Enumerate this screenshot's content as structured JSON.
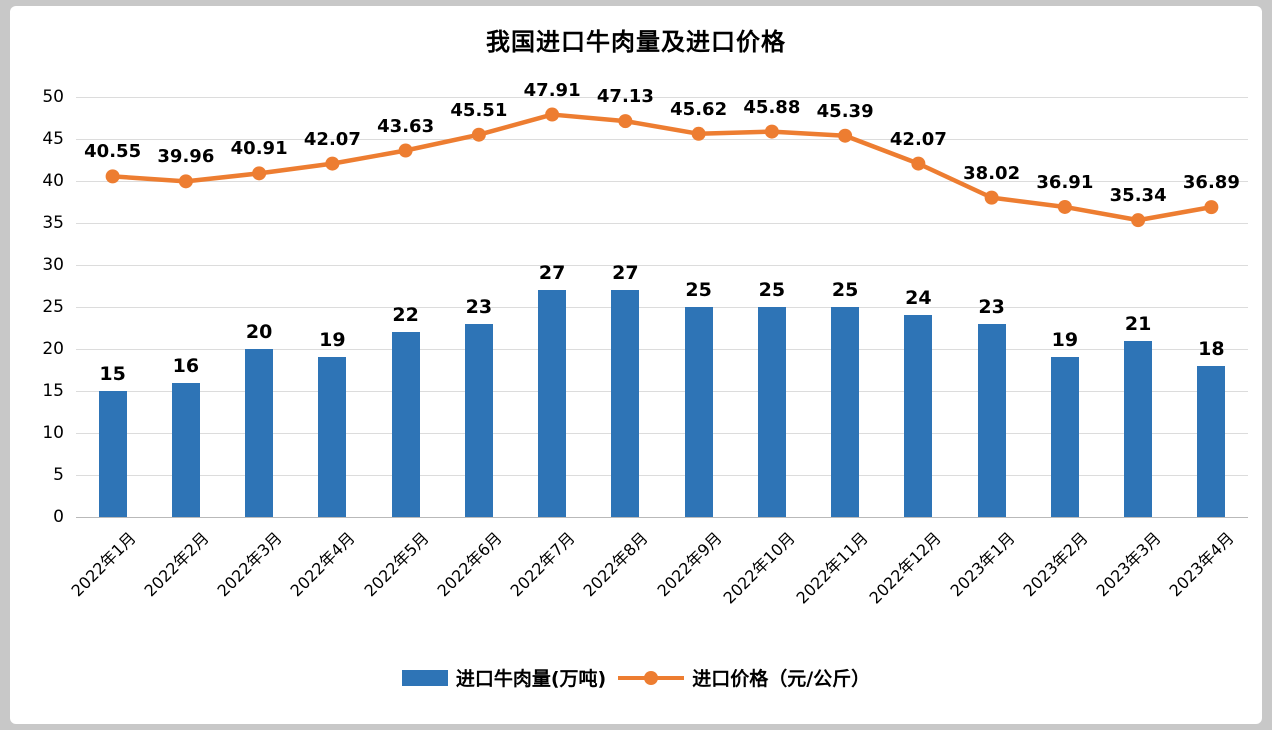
{
  "chart_data": {
    "type": "combo",
    "title": "我国进口牛肉量及进口价格",
    "categories": [
      "2022年1月",
      "2022年2月",
      "2022年3月",
      "2022年4月",
      "2022年5月",
      "2022年6月",
      "2022年7月",
      "2022年8月",
      "2022年9月",
      "2022年10月",
      "2022年11月",
      "2022年12月",
      "2023年1月",
      "2023年2月",
      "2023年3月",
      "2023年4月"
    ],
    "series": [
      {
        "name": "进口牛肉量(万吨)",
        "type": "bar",
        "values": [
          15,
          16,
          20,
          19,
          22,
          23,
          27,
          27,
          25,
          25,
          25,
          24,
          23,
          19,
          21,
          18
        ]
      },
      {
        "name": "进口价格（元/公斤）",
        "type": "line",
        "values": [
          40.55,
          39.96,
          40.91,
          42.07,
          43.63,
          45.51,
          47.91,
          47.13,
          45.62,
          45.88,
          45.39,
          42.07,
          38.02,
          36.91,
          35.34,
          36.89
        ]
      }
    ],
    "y_axis": {
      "min": 0,
      "max": 50,
      "step": 5,
      "ticks": [
        0,
        5,
        10,
        15,
        20,
        25,
        30,
        35,
        40,
        45,
        50
      ]
    },
    "grid": true,
    "legend_position": "bottom",
    "xlabel": "",
    "ylabel": ""
  },
  "legend": {
    "bar_label": "进口牛肉量(万吨)",
    "line_label": "进口价格（元/公斤）"
  },
  "colors": {
    "bar": "#2E74B6",
    "line": "#ED7D31",
    "grid": "#DCDCDC",
    "axis_line": "#B9B9B9",
    "text": "#000000",
    "frame": "#C8C8C8",
    "panel": "#FFFFFF"
  }
}
